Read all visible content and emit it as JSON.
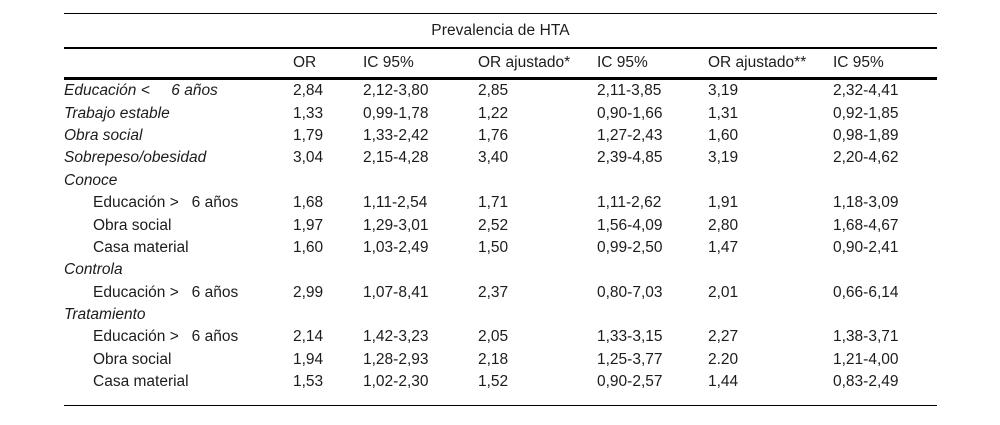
{
  "page": {
    "background": "#ffffff",
    "text_color": "#1c1c1c",
    "rule_color": "#000000"
  },
  "table": {
    "title": "Prevalencia de HTA",
    "columns": [
      "OR",
      "IC 95%",
      "OR ajustado*",
      "IC 95%",
      "OR ajustado**",
      "IC 95%"
    ],
    "rows": [
      {
        "label": "Educación <     6 años",
        "italic": true,
        "indent": false,
        "values": [
          "2,84",
          "2,12-3,80",
          "2,85",
          "2,11-3,85",
          "3,19",
          "2,32-4,41"
        ]
      },
      {
        "label": "Trabajo estable",
        "italic": true,
        "indent": false,
        "values": [
          "1,33",
          "0,99-1,78",
          "1,22",
          "0,90-1,66",
          "1,31",
          "0,92-1,85"
        ]
      },
      {
        "label": "Obra social",
        "italic": true,
        "indent": false,
        "values": [
          "1,79",
          "1,33-2,42",
          "1,76",
          "1,27-2,43",
          "1,60",
          "0,98-1,89"
        ]
      },
      {
        "label": "Sobrepeso/obesidad",
        "italic": true,
        "indent": false,
        "values": [
          "3,04",
          "2,15-4,28",
          "3,40",
          "2,39-4,85",
          "3,19",
          "2,20-4,62"
        ]
      },
      {
        "label": "Conoce",
        "italic": true,
        "indent": false,
        "values": [
          "",
          "",
          "",
          "",
          "",
          ""
        ]
      },
      {
        "label": "Educación >   6 años",
        "italic": false,
        "indent": true,
        "values": [
          "1,68",
          "1,11-2,54",
          "1,71",
          "1,11-2,62",
          "1,91",
          "1,18-3,09"
        ]
      },
      {
        "label": "Obra social",
        "italic": false,
        "indent": true,
        "values": [
          "1,97",
          "1,29-3,01",
          "2,52",
          "1,56-4,09",
          "2,80",
          "1,68-4,67"
        ]
      },
      {
        "label": "Casa material",
        "italic": false,
        "indent": true,
        "values": [
          "1,60",
          "1,03-2,49",
          "1,50",
          "0,99-2,50",
          "1,47",
          "0,90-2,41"
        ]
      },
      {
        "label": "Controla",
        "italic": true,
        "indent": false,
        "values": [
          "",
          "",
          "",
          "",
          "",
          ""
        ]
      },
      {
        "label": "Educación >   6 años",
        "italic": false,
        "indent": true,
        "values": [
          "2,99",
          "1,07-8,41",
          "2,37",
          "0,80-7,03",
          "2,01",
          "0,66-6,14"
        ]
      },
      {
        "label": "Tratamiento",
        "italic": true,
        "indent": false,
        "values": [
          "",
          "",
          "",
          "",
          "",
          ""
        ]
      },
      {
        "label": "Educación >   6 años",
        "italic": false,
        "indent": true,
        "values": [
          "2,14",
          "1,42-3,23",
          "2,05",
          "1,33-3,15",
          "2,27",
          "1,38-3,71"
        ]
      },
      {
        "label": "Obra social",
        "italic": false,
        "indent": true,
        "values": [
          "1,94",
          "1,28-2,93",
          "2,18",
          "1,25-3,77",
          "2.20",
          "1,21-4,00"
        ]
      },
      {
        "label": "Casa material",
        "italic": false,
        "indent": true,
        "values": [
          "1,53",
          "1,02-2,30",
          "1,52",
          "0,90-2,57",
          "1,44",
          "0,83-2,49"
        ]
      }
    ]
  }
}
